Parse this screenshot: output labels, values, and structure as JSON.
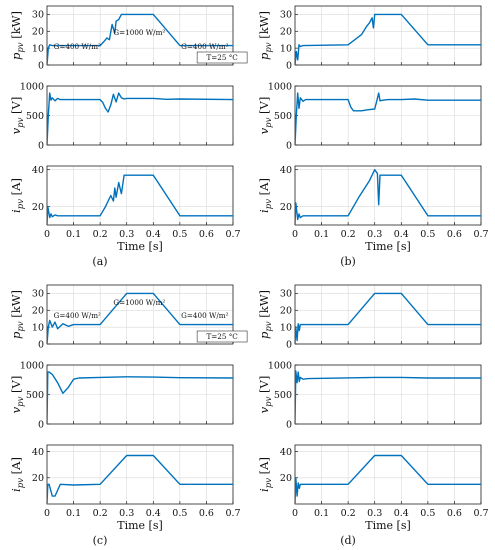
{
  "figure": {
    "xlabel": "Time [s]",
    "annotations": {
      "g400_left": "G=400 W/m²",
      "g1000": "G=1000 W/m²",
      "g400_right": "G=400 W/m²",
      "temperature": "T=25 °C"
    },
    "captions": [
      "(a)",
      "(b)",
      "(c)",
      "(d)"
    ],
    "line_color": "#0072BD"
  },
  "chart_data": [
    {
      "caption": "(a)",
      "type": "line",
      "xlim": [
        0,
        0.7
      ],
      "xticks": [
        0,
        0.1,
        0.2,
        0.3,
        0.4,
        0.5,
        0.6,
        0.7
      ],
      "grid": true,
      "panels": [
        {
          "ylabel": "p_pv [kW]",
          "ylim": [
            0,
            35
          ],
          "yticks": [
            0,
            10,
            20,
            30
          ],
          "x": [
            0,
            0.005,
            0.01,
            0.02,
            0.2,
            0.215,
            0.225,
            0.235,
            0.245,
            0.255,
            0.26,
            0.27,
            0.28,
            0.3,
            0.4,
            0.5,
            0.7
          ],
          "y": [
            0,
            10,
            12,
            11.5,
            11.5,
            14,
            16,
            15,
            24,
            19,
            26,
            27,
            30,
            30,
            30,
            11.5,
            11.5
          ]
        },
        {
          "ylabel": "v_pv [V]",
          "ylim": [
            0,
            1000
          ],
          "yticks": [
            0,
            500,
            1000
          ],
          "x": [
            0,
            0.005,
            0.01,
            0.015,
            0.02,
            0.03,
            0.04,
            0.05,
            0.2,
            0.21,
            0.22,
            0.23,
            0.24,
            0.25,
            0.26,
            0.27,
            0.28,
            0.29,
            0.3,
            0.4,
            0.45,
            0.5,
            0.7
          ],
          "y": [
            0,
            500,
            880,
            760,
            800,
            750,
            790,
            770,
            770,
            720,
            620,
            560,
            680,
            860,
            730,
            880,
            800,
            780,
            790,
            790,
            775,
            780,
            770
          ]
        },
        {
          "ylabel": "i_pv [A]",
          "ylim": [
            10,
            42
          ],
          "yticks": [
            20,
            40
          ],
          "x": [
            0,
            0.003,
            0.01,
            0.015,
            0.02,
            0.03,
            0.04,
            0.2,
            0.22,
            0.24,
            0.25,
            0.255,
            0.26,
            0.27,
            0.28,
            0.29,
            0.3,
            0.4,
            0.5,
            0.7
          ],
          "y": [
            10,
            20,
            14,
            16,
            14.5,
            15.5,
            15,
            15,
            20,
            26,
            23,
            30,
            25,
            33,
            27,
            37,
            37,
            37,
            15,
            15
          ]
        }
      ]
    },
    {
      "caption": "(b)",
      "type": "line",
      "xlim": [
        0,
        0.7
      ],
      "xticks": [
        0,
        0.1,
        0.2,
        0.3,
        0.4,
        0.5,
        0.6,
        0.7
      ],
      "grid": true,
      "panels": [
        {
          "ylabel": "p_pv [kW]",
          "ylim": [
            0,
            35
          ],
          "yticks": [
            0,
            10,
            20,
            30
          ],
          "x": [
            0,
            0.005,
            0.01,
            0.015,
            0.02,
            0.03,
            0.2,
            0.25,
            0.27,
            0.28,
            0.29,
            0.295,
            0.3,
            0.31,
            0.4,
            0.5,
            0.7
          ],
          "y": [
            0,
            8,
            3,
            12,
            11,
            11.5,
            12,
            18,
            23,
            25,
            28,
            22,
            30,
            30,
            30,
            12,
            12
          ]
        },
        {
          "ylabel": "v_pv [V]",
          "ylim": [
            0,
            1000
          ],
          "yticks": [
            0,
            500,
            1000
          ],
          "x": [
            0,
            0.005,
            0.01,
            0.015,
            0.02,
            0.03,
            0.04,
            0.2,
            0.21,
            0.22,
            0.25,
            0.28,
            0.3,
            0.31,
            0.315,
            0.32,
            0.33,
            0.35,
            0.4,
            0.45,
            0.5,
            0.7
          ],
          "y": [
            0,
            500,
            880,
            620,
            800,
            740,
            770,
            770,
            640,
            580,
            580,
            600,
            610,
            790,
            880,
            750,
            760,
            770,
            770,
            780,
            760,
            760
          ]
        },
        {
          "ylabel": "i_pv [A]",
          "ylim": [
            10,
            42
          ],
          "yticks": [
            20,
            40
          ],
          "x": [
            0,
            0.003,
            0.01,
            0.015,
            0.02,
            0.03,
            0.2,
            0.24,
            0.28,
            0.3,
            0.31,
            0.315,
            0.32,
            0.33,
            0.4,
            0.5,
            0.7
          ],
          "y": [
            10,
            22,
            13,
            16,
            14,
            15,
            15,
            25,
            34,
            40,
            38,
            21,
            37,
            37,
            37,
            15,
            15
          ]
        }
      ]
    },
    {
      "caption": "(c)",
      "type": "line",
      "xlim": [
        0,
        0.7
      ],
      "xticks": [
        0,
        0.1,
        0.2,
        0.3,
        0.4,
        0.5,
        0.6,
        0.7
      ],
      "grid": true,
      "panels": [
        {
          "ylabel": "p_pv [kW]",
          "ylim": [
            0,
            35
          ],
          "yticks": [
            0,
            10,
            20,
            30
          ],
          "x": [
            0,
            0.005,
            0.01,
            0.02,
            0.03,
            0.04,
            0.06,
            0.08,
            0.1,
            0.2,
            0.3,
            0.4,
            0.5,
            0.7
          ],
          "y": [
            0,
            10,
            14,
            10,
            13,
            9,
            12,
            10.5,
            11.5,
            11.5,
            30,
            30,
            11.5,
            11.5
          ]
        },
        {
          "ylabel": "v_pv [V]",
          "ylim": [
            0,
            1000
          ],
          "yticks": [
            0,
            500,
            1000
          ],
          "x": [
            0,
            0.003,
            0.008,
            0.02,
            0.04,
            0.06,
            0.08,
            0.1,
            0.12,
            0.2,
            0.3,
            0.4,
            0.5,
            0.7
          ],
          "y": [
            0,
            880,
            880,
            840,
            700,
            520,
            620,
            760,
            780,
            790,
            800,
            795,
            785,
            780
          ]
        },
        {
          "ylabel": "i_pv [A]",
          "ylim": [
            0,
            45
          ],
          "yticks": [
            20,
            40
          ],
          "x": [
            0,
            0.003,
            0.008,
            0.02,
            0.03,
            0.05,
            0.1,
            0.2,
            0.3,
            0.4,
            0.5,
            0.7
          ],
          "y": [
            0,
            15,
            15,
            6,
            6,
            15,
            14.5,
            15,
            37,
            37,
            15,
            15
          ]
        }
      ]
    },
    {
      "caption": "(d)",
      "type": "line",
      "xlim": [
        0,
        0.7
      ],
      "xticks": [
        0,
        0.1,
        0.2,
        0.3,
        0.4,
        0.5,
        0.6,
        0.7
      ],
      "grid": true,
      "panels": [
        {
          "ylabel": "p_pv [kW]",
          "ylim": [
            0,
            35
          ],
          "yticks": [
            0,
            10,
            20,
            30
          ],
          "x": [
            0,
            0.003,
            0.008,
            0.012,
            0.016,
            0.02,
            0.03,
            0.2,
            0.3,
            0.4,
            0.5,
            0.7
          ],
          "y": [
            0,
            10,
            2,
            12,
            8,
            11.5,
            11.5,
            11.5,
            30,
            30,
            11.5,
            11.5
          ]
        },
        {
          "ylabel": "v_pv [V]",
          "ylim": [
            0,
            1000
          ],
          "yticks": [
            0,
            500,
            1000
          ],
          "x": [
            0,
            0.003,
            0.008,
            0.012,
            0.016,
            0.02,
            0.03,
            0.05,
            0.3,
            0.4,
            0.5,
            0.7
          ],
          "y": [
            0,
            900,
            700,
            880,
            720,
            790,
            760,
            770,
            790,
            790,
            780,
            780
          ]
        },
        {
          "ylabel": "i_pv [A]",
          "ylim": [
            0,
            45
          ],
          "yticks": [
            20,
            40
          ],
          "x": [
            0,
            0.003,
            0.008,
            0.012,
            0.016,
            0.02,
            0.04,
            0.2,
            0.3,
            0.4,
            0.5,
            0.7
          ],
          "y": [
            0,
            20,
            6,
            16,
            12,
            15,
            15,
            15,
            37,
            37,
            15,
            15
          ]
        }
      ]
    }
  ]
}
